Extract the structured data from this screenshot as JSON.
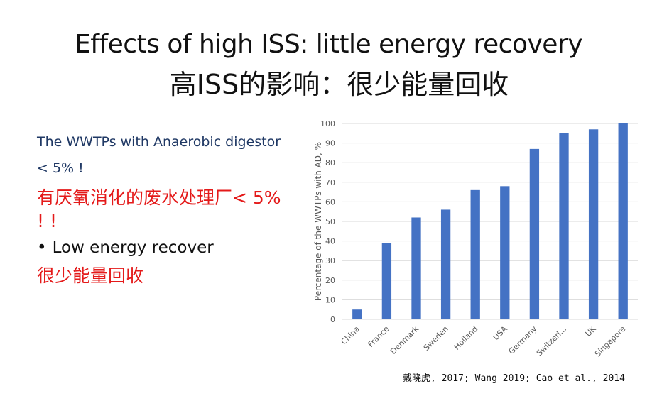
{
  "slide": {
    "title_en": "Effects of high ISS: little energy recovery",
    "title_zh": "高ISS的影响：很少能量回收",
    "line1": "The WWTPs with Anaerobic digestor",
    "line2": "< 5% !",
    "line3": "有厌氧消化的废水处理厂< 5% ! !",
    "bullet_text": "Low energy recover",
    "line5": "很少能量回收",
    "citation": "戴晓虎, 2017; Wang 2019; Cao et al., 2014"
  },
  "chart_data": {
    "type": "bar",
    "categories": [
      "China",
      "France",
      "Denmark",
      "Sweden",
      "Holland",
      "USA",
      "Germany",
      "Switzerl...",
      "UK",
      "Singapore"
    ],
    "series": [
      {
        "values": [
          5,
          39,
          52,
          56,
          66,
          68,
          87,
          95,
          97,
          100
        ]
      }
    ],
    "ylabel": "Percentage of the WWTPs with AD, %",
    "xlabel": "",
    "ylim": [
      0,
      100
    ],
    "yticks": [
      0,
      10,
      20,
      30,
      40,
      50,
      60,
      70,
      80,
      90,
      100
    ],
    "grid": true,
    "bar_color": "#4472c4"
  }
}
